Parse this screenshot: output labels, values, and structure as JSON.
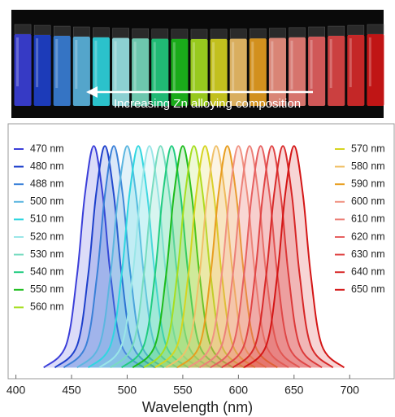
{
  "photo_caption": "Increasing Zn alloying composition",
  "chart_data": {
    "type": "line",
    "fill": true,
    "xlabel": "Wavelength (nm)",
    "xlim": [
      393,
      740
    ],
    "ylim": [
      -0.05,
      1.1
    ],
    "xticks": [
      400,
      450,
      500,
      550,
      600,
      650,
      700
    ],
    "series": [
      {
        "name": "470 nm",
        "color": "#3b3fd9",
        "x": [
          425,
          445,
          455,
          462,
          470,
          478,
          485,
          495,
          515
        ],
        "values": [
          0,
          0.1,
          0.42,
          0.78,
          1,
          0.78,
          0.42,
          0.1,
          0
        ]
      },
      {
        "name": "480 nm",
        "color": "#1e40cc",
        "x": [
          435,
          455,
          465,
          472,
          480,
          488,
          495,
          505,
          525
        ],
        "values": [
          0,
          0.1,
          0.42,
          0.78,
          1,
          0.78,
          0.42,
          0.1,
          0
        ]
      },
      {
        "name": "488 nm",
        "color": "#3a80d8",
        "x": [
          443,
          463,
          473,
          480,
          488,
          496,
          503,
          513,
          533
        ],
        "values": [
          0,
          0.1,
          0.42,
          0.78,
          1,
          0.78,
          0.42,
          0.1,
          0
        ]
      },
      {
        "name": "500 nm",
        "color": "#5cb6e0",
        "x": [
          455,
          475,
          485,
          492,
          500,
          508,
          515,
          525,
          545
        ],
        "values": [
          0,
          0.1,
          0.42,
          0.78,
          1,
          0.78,
          0.42,
          0.1,
          0
        ]
      },
      {
        "name": "510 nm",
        "color": "#2fd6e0",
        "x": [
          465,
          485,
          495,
          502,
          510,
          518,
          525,
          535,
          555
        ],
        "values": [
          0,
          0.1,
          0.42,
          0.78,
          1,
          0.78,
          0.42,
          0.1,
          0
        ]
      },
      {
        "name": "520 nm",
        "color": "#9ae6e8",
        "x": [
          475,
          495,
          505,
          512,
          520,
          528,
          535,
          545,
          565
        ],
        "values": [
          0,
          0.1,
          0.42,
          0.78,
          1,
          0.78,
          0.42,
          0.1,
          0
        ]
      },
      {
        "name": "530 nm",
        "color": "#78dcc0",
        "x": [
          485,
          505,
          515,
          522,
          530,
          538,
          545,
          555,
          575
        ],
        "values": [
          0,
          0.1,
          0.42,
          0.78,
          1,
          0.78,
          0.42,
          0.1,
          0
        ]
      },
      {
        "name": "540 nm",
        "color": "#22cc80",
        "x": [
          495,
          515,
          525,
          532,
          540,
          548,
          555,
          565,
          585
        ],
        "values": [
          0,
          0.1,
          0.42,
          0.78,
          1,
          0.78,
          0.42,
          0.1,
          0
        ]
      },
      {
        "name": "550 nm",
        "color": "#1cbc1c",
        "x": [
          505,
          525,
          535,
          542,
          550,
          558,
          565,
          575,
          595
        ],
        "values": [
          0,
          0.1,
          0.42,
          0.78,
          1,
          0.78,
          0.42,
          0.1,
          0
        ]
      },
      {
        "name": "560 nm",
        "color": "#a6de20",
        "x": [
          515,
          535,
          545,
          552,
          560,
          568,
          575,
          585,
          605
        ],
        "values": [
          0,
          0.1,
          0.42,
          0.78,
          1,
          0.78,
          0.42,
          0.1,
          0
        ]
      },
      {
        "name": "570 nm",
        "color": "#d6d420",
        "x": [
          525,
          545,
          555,
          562,
          570,
          578,
          585,
          595,
          615
        ],
        "values": [
          0,
          0.1,
          0.42,
          0.78,
          1,
          0.78,
          0.42,
          0.1,
          0
        ]
      },
      {
        "name": "580 nm",
        "color": "#f0c068",
        "x": [
          535,
          555,
          565,
          572,
          580,
          588,
          595,
          605,
          625
        ],
        "values": [
          0,
          0.1,
          0.42,
          0.78,
          1,
          0.78,
          0.42,
          0.1,
          0
        ]
      },
      {
        "name": "590 nm",
        "color": "#e89e20",
        "x": [
          545,
          565,
          575,
          582,
          590,
          598,
          605,
          615,
          635
        ],
        "values": [
          0,
          0.1,
          0.42,
          0.78,
          1,
          0.78,
          0.42,
          0.1,
          0
        ]
      },
      {
        "name": "600 nm",
        "color": "#f09282",
        "x": [
          555,
          575,
          585,
          592,
          600,
          608,
          615,
          625,
          645
        ],
        "values": [
          0,
          0.1,
          0.42,
          0.78,
          1,
          0.78,
          0.42,
          0.1,
          0
        ]
      },
      {
        "name": "610 nm",
        "color": "#ec8078",
        "x": [
          565,
          585,
          595,
          602,
          610,
          618,
          625,
          635,
          655
        ],
        "values": [
          0,
          0.1,
          0.42,
          0.78,
          1,
          0.78,
          0.42,
          0.1,
          0
        ]
      },
      {
        "name": "620 nm",
        "color": "#e66060",
        "x": [
          575,
          595,
          605,
          612,
          620,
          628,
          635,
          645,
          665
        ],
        "values": [
          0,
          0.1,
          0.42,
          0.78,
          1,
          0.78,
          0.42,
          0.1,
          0
        ]
      },
      {
        "name": "630 nm",
        "color": "#e04646",
        "x": [
          585,
          605,
          615,
          622,
          630,
          638,
          645,
          655,
          675
        ],
        "values": [
          0,
          0.1,
          0.42,
          0.78,
          1,
          0.78,
          0.42,
          0.1,
          0
        ]
      },
      {
        "name": "640 nm",
        "color": "#d82a2a",
        "x": [
          595,
          615,
          625,
          632,
          640,
          648,
          655,
          665,
          685
        ],
        "values": [
          0,
          0.1,
          0.42,
          0.78,
          1,
          0.78,
          0.42,
          0.1,
          0
        ]
      },
      {
        "name": "650 nm",
        "color": "#d41616",
        "x": [
          605,
          625,
          635,
          642,
          650,
          658,
          665,
          675,
          695
        ],
        "values": [
          0,
          0.1,
          0.42,
          0.78,
          1,
          0.78,
          0.42,
          0.1,
          0
        ]
      }
    ]
  }
}
